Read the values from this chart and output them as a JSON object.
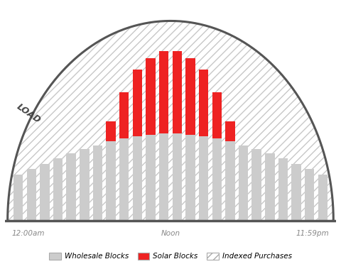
{
  "n_bars": 24,
  "bar_width": 0.72,
  "wholesale_color": "#cccccc",
  "solar_color": "#ee2222",
  "hatch_color": "#c8c8c8",
  "arc_color": "#555555",
  "background_color": "#ffffff",
  "border_color": "#dddddd",
  "xlabel_left": "12:00am",
  "xlabel_mid": "Noon",
  "xlabel_right": "11:59pm",
  "arc_label": "LOAD",
  "legend_items": [
    "Wholesale Blocks",
    "Solar Blocks",
    "Indexed Purchases"
  ],
  "wholesale_heights": [
    3.5,
    3.9,
    4.3,
    4.7,
    5.1,
    5.4,
    5.7,
    6.0,
    6.2,
    6.4,
    6.5,
    6.6,
    6.6,
    6.5,
    6.4,
    6.2,
    6.0,
    5.7,
    5.4,
    5.1,
    4.7,
    4.3,
    3.9,
    3.5
  ],
  "solar_heights": [
    0,
    0,
    0,
    0,
    0,
    0,
    0,
    1.5,
    3.5,
    5.0,
    5.8,
    6.2,
    6.2,
    5.8,
    5.0,
    3.5,
    1.5,
    0,
    0,
    0,
    0,
    0,
    0,
    0
  ],
  "arc_extra_ratio": 1.18
}
